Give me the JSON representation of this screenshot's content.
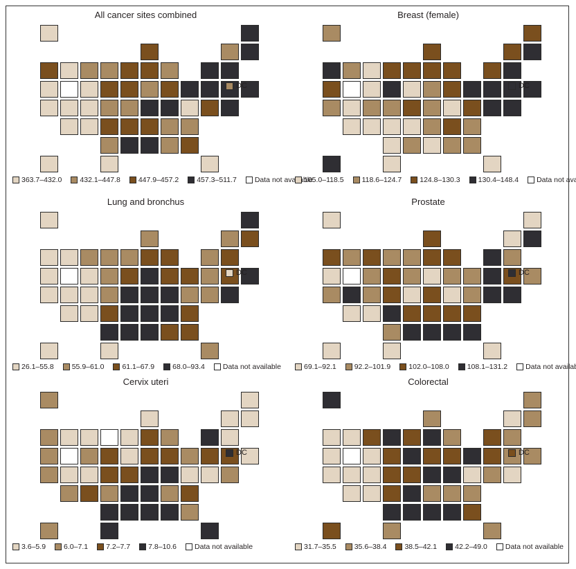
{
  "colors": {
    "0": "#ffffff",
    "1": "#e3d5c2",
    "2": "#a98b63",
    "3": "#7a4f1e",
    "4": "#2f2e33"
  },
  "dc_label": "DC",
  "na_label": "Data not available",
  "panels": [
    {
      "title": "All cancer sites combined",
      "legend": [
        "363.7–432.0",
        "432.1–447.8",
        "447.9–457.2",
        "457.3–511.7"
      ],
      "states": {
        "WA": 3,
        "OR": 1,
        "CA": 1,
        "NV": 0,
        "ID": 1,
        "MT": 2,
        "WY": 1,
        "UT": 1,
        "CO": 1,
        "AZ": 1,
        "NM": 1,
        "ND": 2,
        "SD": 3,
        "NE": 2,
        "KS": 3,
        "OK": 2,
        "TX": 1,
        "MN": 3,
        "IA": 3,
        "MO": 2,
        "AR": 3,
        "LA": 4,
        "WI": 3,
        "IL": 3,
        "MI": 2,
        "IN": 2,
        "OH": 3,
        "KY": 4,
        "TN": 3,
        "MS": 4,
        "AL": 2,
        "GA": 3,
        "FL": 1,
        "SC": 2,
        "NC": 2,
        "VA": 1,
        "WV": 4,
        "PA": 4,
        "NY": 4,
        "VT": 2,
        "NH": 4,
        "ME": 4,
        "MA": 4,
        "CT": 4,
        "RI": 4,
        "NJ": 4,
        "DE": 4,
        "MD": 3,
        "DC": 2,
        "AK": 1,
        "HI": 1
      }
    },
    {
      "title": "Breast (female)",
      "legend": [
        "105.0–118.5",
        "118.6–124.7",
        "124.8–130.3",
        "130.4–148.4"
      ],
      "states": {
        "WA": 4,
        "OR": 3,
        "CA": 2,
        "NV": 0,
        "ID": 2,
        "MT": 1,
        "WY": 1,
        "UT": 1,
        "CO": 2,
        "AZ": 1,
        "NM": 1,
        "ND": 3,
        "SD": 4,
        "NE": 2,
        "KS": 1,
        "OK": 1,
        "TX": 1,
        "MN": 3,
        "IA": 1,
        "MO": 3,
        "AR": 1,
        "LA": 2,
        "WI": 3,
        "IL": 3,
        "MI": 3,
        "IN": 2,
        "OH": 3,
        "KY": 2,
        "TN": 2,
        "MS": 1,
        "AL": 2,
        "GA": 2,
        "FL": 1,
        "SC": 2,
        "NC": 3,
        "VA": 3,
        "WV": 1,
        "PA": 4,
        "NY": 3,
        "VT": 3,
        "NH": 4,
        "ME": 3,
        "MA": 4,
        "CT": 4,
        "RI": 4,
        "NJ": 4,
        "DE": 4,
        "MD": 4,
        "DC": 4,
        "AK": 2,
        "HI": 4
      }
    },
    {
      "title": "Lung and bronchus",
      "legend": [
        "26.1–55.8",
        "55.9–61.0",
        "61.1–67.9",
        "68.0–93.4"
      ],
      "states": {
        "WA": 1,
        "OR": 1,
        "CA": 1,
        "NV": 0,
        "ID": 1,
        "MT": 2,
        "WY": 1,
        "UT": 1,
        "CO": 1,
        "AZ": 1,
        "NM": 1,
        "ND": 2,
        "SD": 2,
        "NE": 2,
        "KS": 3,
        "OK": 4,
        "TX": 1,
        "MN": 2,
        "IA": 3,
        "MO": 4,
        "AR": 4,
        "LA": 4,
        "WI": 2,
        "IL": 3,
        "MI": 3,
        "IN": 4,
        "OH": 3,
        "KY": 4,
        "TN": 4,
        "MS": 4,
        "AL": 3,
        "GA": 3,
        "FL": 2,
        "SC": 3,
        "NC": 4,
        "VA": 2,
        "WV": 4,
        "PA": 3,
        "NY": 2,
        "VT": 2,
        "NH": 3,
        "ME": 4,
        "MA": 3,
        "CT": 3,
        "RI": 4,
        "NJ": 2,
        "DE": 4,
        "MD": 2,
        "DC": 1,
        "AK": 1,
        "HI": 1
      }
    },
    {
      "title": "Prostate",
      "legend": [
        "69.1–92.1",
        "92.2–101.9",
        "102.0–108.0",
        "108.1–131.2"
      ],
      "states": {
        "WA": 3,
        "OR": 1,
        "CA": 2,
        "NV": 0,
        "ID": 2,
        "MT": 3,
        "WY": 2,
        "UT": 4,
        "CO": 2,
        "AZ": 1,
        "NM": 1,
        "ND": 2,
        "SD": 3,
        "NE": 3,
        "KS": 4,
        "OK": 2,
        "TX": 1,
        "MN": 2,
        "IA": 2,
        "MO": 1,
        "AR": 3,
        "LA": 4,
        "WI": 3,
        "IL": 3,
        "MI": 3,
        "IN": 1,
        "OH": 2,
        "KY": 3,
        "TN": 3,
        "MS": 4,
        "AL": 4,
        "GA": 4,
        "FL": 1,
        "SC": 3,
        "NC": 3,
        "VA": 2,
        "WV": 1,
        "PA": 2,
        "NY": 4,
        "VT": 1,
        "NH": 4,
        "ME": 1,
        "MA": 2,
        "CT": 3,
        "RI": 2,
        "NJ": 4,
        "DE": 4,
        "MD": 4,
        "DC": 4,
        "AK": 1,
        "HI": 1
      }
    },
    {
      "title": "Cervix uteri",
      "legend": [
        "3.6–5.9",
        "6.0–7.1",
        "7.2–7.7",
        "7.8–10.6"
      ],
      "states": {
        "WA": 2,
        "OR": 2,
        "CA": 2,
        "NV": 0,
        "ID": 1,
        "MT": 1,
        "WY": 2,
        "UT": 1,
        "CO": 1,
        "AZ": 2,
        "NM": 3,
        "ND": 0,
        "SD": 3,
        "NE": 3,
        "KS": 2,
        "OK": 4,
        "TX": 4,
        "MN": 1,
        "IA": 1,
        "MO": 3,
        "AR": 4,
        "LA": 4,
        "WI": 1,
        "IL": 3,
        "MI": 2,
        "IN": 3,
        "OH": 3,
        "KY": 4,
        "TN": 4,
        "MS": 4,
        "AL": 4,
        "GA": 2,
        "FL": 4,
        "SC": 3,
        "NC": 2,
        "VA": 1,
        "WV": 4,
        "PA": 2,
        "NY": 4,
        "VT": 1,
        "NH": 1,
        "ME": 1,
        "MA": 1,
        "CT": 3,
        "RI": 1,
        "NJ": 3,
        "DE": 2,
        "MD": 1,
        "DC": 4,
        "AK": 2,
        "HI": 2
      }
    },
    {
      "title": "Colorectal",
      "legend": [
        "31.7–35.5",
        "35.6–38.4",
        "38.5–42.1",
        "42.2–49.0"
      ],
      "states": {
        "WA": 1,
        "OR": 1,
        "CA": 1,
        "NV": 0,
        "ID": 1,
        "MT": 3,
        "WY": 1,
        "UT": 1,
        "CO": 1,
        "AZ": 1,
        "NM": 1,
        "ND": 4,
        "SD": 3,
        "NE": 3,
        "KS": 3,
        "OK": 4,
        "TX": 2,
        "MN": 3,
        "IA": 4,
        "MO": 3,
        "AR": 4,
        "LA": 4,
        "WI": 2,
        "IL": 4,
        "MI": 2,
        "IN": 3,
        "OH": 3,
        "KY": 4,
        "TN": 2,
        "MS": 4,
        "AL": 4,
        "GA": 3,
        "FL": 2,
        "SC": 2,
        "NC": 2,
        "VA": 1,
        "WV": 4,
        "PA": 4,
        "NY": 3,
        "VT": 1,
        "NH": 2,
        "ME": 2,
        "MA": 2,
        "CT": 2,
        "RI": 2,
        "NJ": 3,
        "DE": 1,
        "MD": 2,
        "DC": 3,
        "AK": 4,
        "HI": 3
      }
    }
  ]
}
